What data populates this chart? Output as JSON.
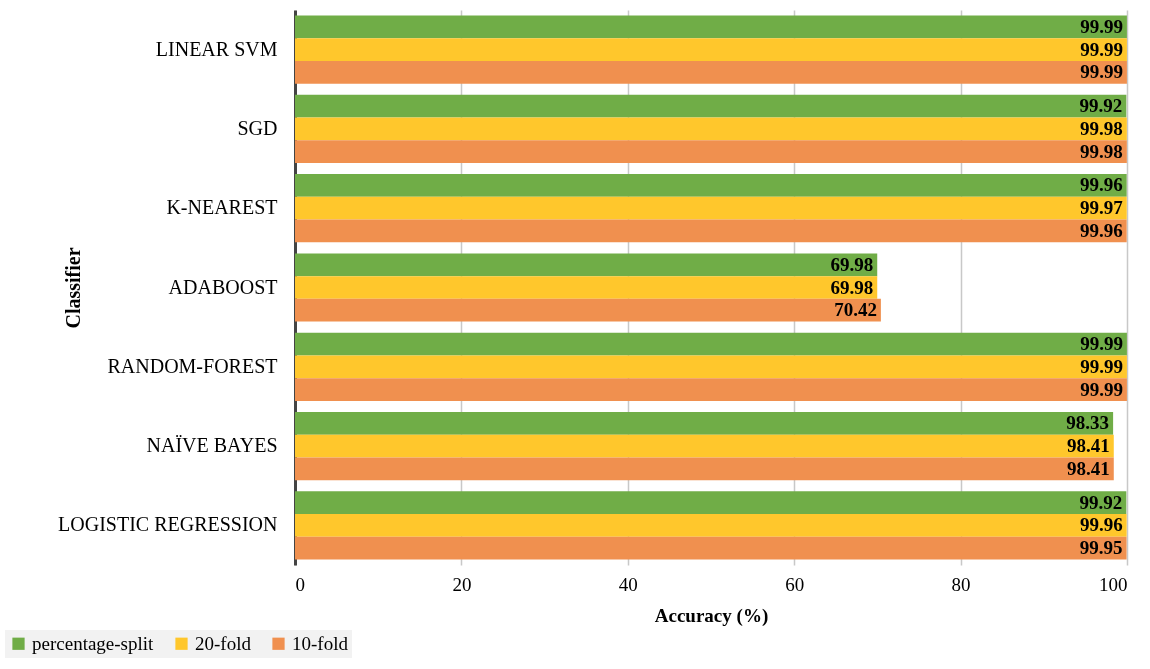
{
  "chart_data": {
    "type": "bar",
    "orientation": "horizontal",
    "xlabel": "Accuracy (%)",
    "ylabel": "Classifier",
    "categories": [
      "LINEAR SVM",
      "SGD",
      "K-NEAREST",
      "ADABOOST",
      "RANDOM-FOREST",
      "NAÏVE BAYES",
      "LOGISTIC REGRESSION"
    ],
    "series": [
      {
        "name": "percentage-split",
        "color": "#70ad47",
        "values": [
          99.99,
          99.92,
          99.96,
          69.98,
          99.99,
          98.33,
          99.92
        ]
      },
      {
        "name": "20-fold",
        "color": "#ffc72c",
        "values": [
          99.99,
          99.98,
          99.97,
          69.98,
          99.99,
          98.41,
          99.96
        ]
      },
      {
        "name": "10-fold",
        "color": "#f0904f",
        "values": [
          99.99,
          99.98,
          99.96,
          70.42,
          99.99,
          98.41,
          99.95
        ]
      }
    ],
    "xlim": [
      0,
      100
    ],
    "xticks": [
      0,
      20,
      40,
      60,
      80,
      100
    ],
    "grid": "x",
    "legend": "bottom left",
    "data_labels": true
  }
}
